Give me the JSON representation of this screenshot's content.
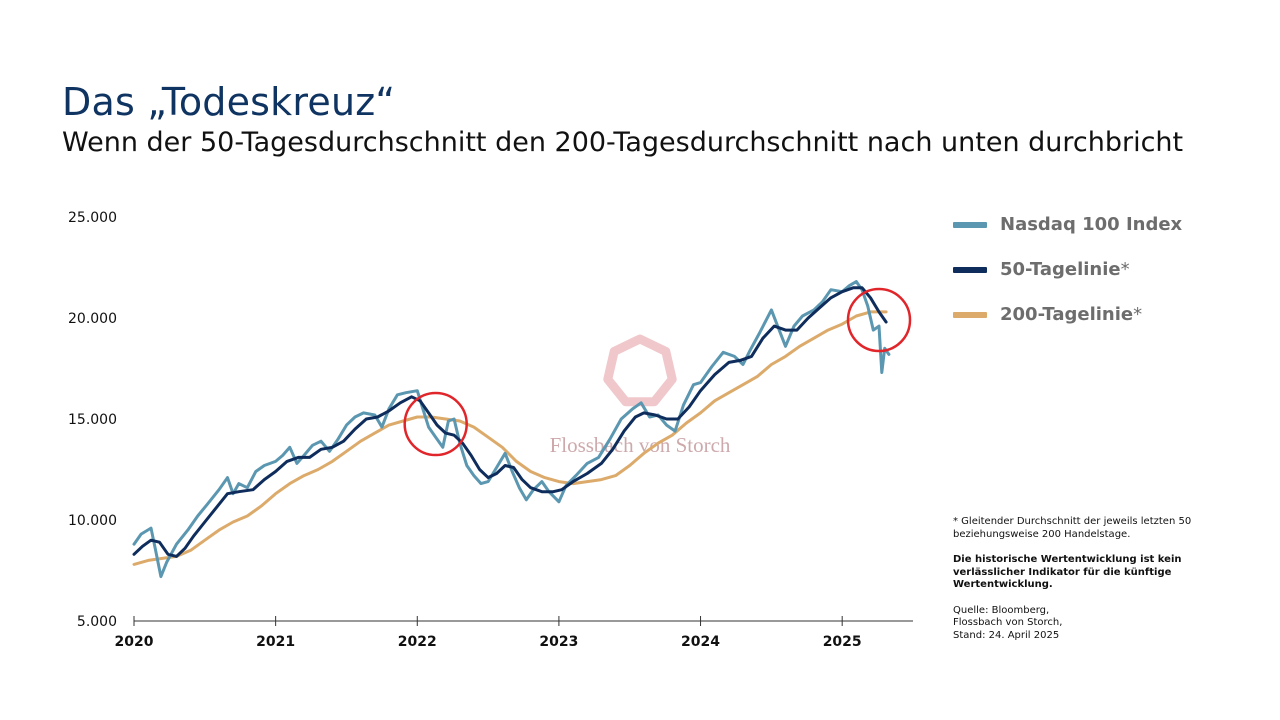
{
  "header": {
    "title": "Das „Todeskreuz“",
    "subtitle": "Wenn der 50-Tagesdurchschnitt den 200-Tagesdurchschnitt nach unten durchbricht"
  },
  "legend": {
    "items": [
      {
        "label": "Nasdaq 100 Index",
        "suffix": "",
        "color": "#5b97b0"
      },
      {
        "label": "50-Tagelinie",
        "suffix": "*",
        "color": "#0f2d5c"
      },
      {
        "label": "200-Tagelinie",
        "suffix": "*",
        "color": "#dcab6b"
      }
    ]
  },
  "notes": {
    "footnote": "* Gleitender Durchschnitt der jeweils letzten 50 beziehungsweise 200 Handelstage.",
    "disclaimer": "Die historische Wertentwicklung ist kein verlässlicher Indikator für die künftige Wertentwicklung.",
    "source_line1": "Quelle: Bloomberg,",
    "source_line2": "Flossbach von Storch,",
    "source_line3": "Stand: 24. April 2025"
  },
  "watermark": {
    "text": "Flossbach von Storch",
    "color": "#c8a0a4"
  },
  "highlight_color": "#e0262b",
  "chart_data": {
    "type": "line",
    "title": "Das „Todeskreuz“",
    "xlabel": "",
    "ylabel": "",
    "xlim": [
      2020.0,
      2025.5
    ],
    "ylim": [
      5000,
      25000
    ],
    "yticks": [
      5000,
      10000,
      15000,
      20000,
      25000
    ],
    "ytick_labels": [
      "5.000",
      "10.000",
      "15.000",
      "20.000",
      "25.000"
    ],
    "xticks": [
      2020,
      2021,
      2022,
      2023,
      2024,
      2025
    ],
    "xtick_labels": [
      "2020",
      "2021",
      "2022",
      "2023",
      "2024",
      "2025"
    ],
    "grid": false,
    "legend_position": "right",
    "series": [
      {
        "name": "Nasdaq 100 Index",
        "color": "#5b97b0",
        "points": [
          [
            2020.0,
            8800
          ],
          [
            2020.05,
            9300
          ],
          [
            2020.12,
            9600
          ],
          [
            2020.15,
            8600
          ],
          [
            2020.19,
            7200
          ],
          [
            2020.23,
            7900
          ],
          [
            2020.3,
            8800
          ],
          [
            2020.38,
            9500
          ],
          [
            2020.45,
            10200
          ],
          [
            2020.52,
            10800
          ],
          [
            2020.6,
            11500
          ],
          [
            2020.66,
            12100
          ],
          [
            2020.7,
            11300
          ],
          [
            2020.74,
            11800
          ],
          [
            2020.8,
            11600
          ],
          [
            2020.86,
            12400
          ],
          [
            2020.92,
            12700
          ],
          [
            2021.0,
            12900
          ],
          [
            2021.05,
            13200
          ],
          [
            2021.1,
            13600
          ],
          [
            2021.15,
            12800
          ],
          [
            2021.2,
            13200
          ],
          [
            2021.26,
            13700
          ],
          [
            2021.32,
            13900
          ],
          [
            2021.38,
            13400
          ],
          [
            2021.44,
            14000
          ],
          [
            2021.5,
            14700
          ],
          [
            2021.56,
            15100
          ],
          [
            2021.62,
            15300
          ],
          [
            2021.7,
            15200
          ],
          [
            2021.75,
            14600
          ],
          [
            2021.8,
            15500
          ],
          [
            2021.86,
            16200
          ],
          [
            2021.92,
            16300
          ],
          [
            2022.0,
            16400
          ],
          [
            2022.04,
            15500
          ],
          [
            2022.08,
            14600
          ],
          [
            2022.13,
            14100
          ],
          [
            2022.18,
            13600
          ],
          [
            2022.22,
            14900
          ],
          [
            2022.26,
            15000
          ],
          [
            2022.3,
            13800
          ],
          [
            2022.35,
            12700
          ],
          [
            2022.4,
            12200
          ],
          [
            2022.45,
            11800
          ],
          [
            2022.5,
            11900
          ],
          [
            2022.56,
            12600
          ],
          [
            2022.62,
            13300
          ],
          [
            2022.67,
            12400
          ],
          [
            2022.72,
            11600
          ],
          [
            2022.77,
            11000
          ],
          [
            2022.82,
            11500
          ],
          [
            2022.88,
            11900
          ],
          [
            2022.93,
            11400
          ],
          [
            2023.0,
            10900
          ],
          [
            2023.05,
            11700
          ],
          [
            2023.12,
            12200
          ],
          [
            2023.2,
            12800
          ],
          [
            2023.28,
            13100
          ],
          [
            2023.36,
            14000
          ],
          [
            2023.44,
            15000
          ],
          [
            2023.52,
            15500
          ],
          [
            2023.58,
            15800
          ],
          [
            2023.64,
            15100
          ],
          [
            2023.7,
            15200
          ],
          [
            2023.76,
            14700
          ],
          [
            2023.82,
            14400
          ],
          [
            2023.88,
            15700
          ],
          [
            2023.95,
            16700
          ],
          [
            2024.0,
            16800
          ],
          [
            2024.08,
            17600
          ],
          [
            2024.16,
            18300
          ],
          [
            2024.24,
            18100
          ],
          [
            2024.3,
            17700
          ],
          [
            2024.35,
            18400
          ],
          [
            2024.42,
            19300
          ],
          [
            2024.5,
            20400
          ],
          [
            2024.55,
            19500
          ],
          [
            2024.6,
            18600
          ],
          [
            2024.66,
            19600
          ],
          [
            2024.72,
            20100
          ],
          [
            2024.8,
            20400
          ],
          [
            2024.86,
            20800
          ],
          [
            2024.92,
            21400
          ],
          [
            2025.0,
            21300
          ],
          [
            2025.05,
            21600
          ],
          [
            2025.1,
            21800
          ],
          [
            2025.14,
            21400
          ],
          [
            2025.18,
            20600
          ],
          [
            2025.22,
            19400
          ],
          [
            2025.26,
            19600
          ],
          [
            2025.28,
            17300
          ],
          [
            2025.3,
            18500
          ],
          [
            2025.33,
            18200
          ]
        ]
      },
      {
        "name": "50-Tagelinie",
        "color": "#0f2d5c",
        "points": [
          [
            2020.0,
            8300
          ],
          [
            2020.06,
            8700
          ],
          [
            2020.12,
            9000
          ],
          [
            2020.18,
            8900
          ],
          [
            2020.24,
            8300
          ],
          [
            2020.3,
            8200
          ],
          [
            2020.36,
            8600
          ],
          [
            2020.42,
            9200
          ],
          [
            2020.5,
            9900
          ],
          [
            2020.58,
            10600
          ],
          [
            2020.66,
            11300
          ],
          [
            2020.74,
            11400
          ],
          [
            2020.84,
            11500
          ],
          [
            2020.92,
            12000
          ],
          [
            2021.0,
            12400
          ],
          [
            2021.08,
            12900
          ],
          [
            2021.16,
            13100
          ],
          [
            2021.24,
            13100
          ],
          [
            2021.32,
            13500
          ],
          [
            2021.4,
            13600
          ],
          [
            2021.48,
            13900
          ],
          [
            2021.56,
            14500
          ],
          [
            2021.64,
            15000
          ],
          [
            2021.72,
            15100
          ],
          [
            2021.8,
            15400
          ],
          [
            2021.88,
            15800
          ],
          [
            2021.96,
            16100
          ],
          [
            2022.02,
            15900
          ],
          [
            2022.08,
            15300
          ],
          [
            2022.14,
            14700
          ],
          [
            2022.2,
            14300
          ],
          [
            2022.26,
            14200
          ],
          [
            2022.32,
            13800
          ],
          [
            2022.38,
            13200
          ],
          [
            2022.44,
            12500
          ],
          [
            2022.5,
            12100
          ],
          [
            2022.56,
            12300
          ],
          [
            2022.62,
            12700
          ],
          [
            2022.68,
            12600
          ],
          [
            2022.74,
            12000
          ],
          [
            2022.8,
            11600
          ],
          [
            2022.88,
            11400
          ],
          [
            2022.96,
            11400
          ],
          [
            2023.02,
            11500
          ],
          [
            2023.1,
            11900
          ],
          [
            2023.2,
            12300
          ],
          [
            2023.3,
            12800
          ],
          [
            2023.38,
            13500
          ],
          [
            2023.46,
            14400
          ],
          [
            2023.54,
            15100
          ],
          [
            2023.6,
            15300
          ],
          [
            2023.68,
            15200
          ],
          [
            2023.76,
            15000
          ],
          [
            2023.84,
            15000
          ],
          [
            2023.92,
            15600
          ],
          [
            2024.0,
            16400
          ],
          [
            2024.1,
            17200
          ],
          [
            2024.2,
            17800
          ],
          [
            2024.28,
            17900
          ],
          [
            2024.36,
            18100
          ],
          [
            2024.44,
            19000
          ],
          [
            2024.52,
            19600
          ],
          [
            2024.6,
            19400
          ],
          [
            2024.68,
            19400
          ],
          [
            2024.76,
            20000
          ],
          [
            2024.84,
            20500
          ],
          [
            2024.92,
            21000
          ],
          [
            2025.0,
            21300
          ],
          [
            2025.08,
            21500
          ],
          [
            2025.14,
            21500
          ],
          [
            2025.2,
            21000
          ],
          [
            2025.26,
            20300
          ],
          [
            2025.31,
            19800
          ]
        ]
      },
      {
        "name": "200-Tagelinie",
        "color": "#dcab6b",
        "points": [
          [
            2020.0,
            7800
          ],
          [
            2020.1,
            8000
          ],
          [
            2020.2,
            8100
          ],
          [
            2020.3,
            8200
          ],
          [
            2020.4,
            8500
          ],
          [
            2020.5,
            9000
          ],
          [
            2020.6,
            9500
          ],
          [
            2020.7,
            9900
          ],
          [
            2020.8,
            10200
          ],
          [
            2020.9,
            10700
          ],
          [
            2021.0,
            11300
          ],
          [
            2021.1,
            11800
          ],
          [
            2021.2,
            12200
          ],
          [
            2021.3,
            12500
          ],
          [
            2021.4,
            12900
          ],
          [
            2021.5,
            13400
          ],
          [
            2021.6,
            13900
          ],
          [
            2021.7,
            14300
          ],
          [
            2021.8,
            14700
          ],
          [
            2021.9,
            14900
          ],
          [
            2022.0,
            15100
          ],
          [
            2022.1,
            15100
          ],
          [
            2022.2,
            15000
          ],
          [
            2022.3,
            14900
          ],
          [
            2022.4,
            14600
          ],
          [
            2022.5,
            14100
          ],
          [
            2022.6,
            13600
          ],
          [
            2022.7,
            12900
          ],
          [
            2022.8,
            12400
          ],
          [
            2022.9,
            12100
          ],
          [
            2023.0,
            11900
          ],
          [
            2023.1,
            11800
          ],
          [
            2023.2,
            11900
          ],
          [
            2023.3,
            12000
          ],
          [
            2023.4,
            12200
          ],
          [
            2023.5,
            12700
          ],
          [
            2023.6,
            13300
          ],
          [
            2023.7,
            13800
          ],
          [
            2023.8,
            14200
          ],
          [
            2023.9,
            14800
          ],
          [
            2024.0,
            15300
          ],
          [
            2024.1,
            15900
          ],
          [
            2024.2,
            16300
          ],
          [
            2024.3,
            16700
          ],
          [
            2024.4,
            17100
          ],
          [
            2024.5,
            17700
          ],
          [
            2024.6,
            18100
          ],
          [
            2024.7,
            18600
          ],
          [
            2024.8,
            19000
          ],
          [
            2024.9,
            19400
          ],
          [
            2025.0,
            19700
          ],
          [
            2025.1,
            20100
          ],
          [
            2025.2,
            20300
          ],
          [
            2025.31,
            20300
          ]
        ]
      }
    ],
    "annotations": [
      {
        "type": "circle",
        "label": "death-cross-2022",
        "x": 2022.13,
        "y": 14750
      },
      {
        "type": "circle",
        "label": "death-cross-2025",
        "x": 2025.26,
        "y": 19900
      }
    ]
  }
}
